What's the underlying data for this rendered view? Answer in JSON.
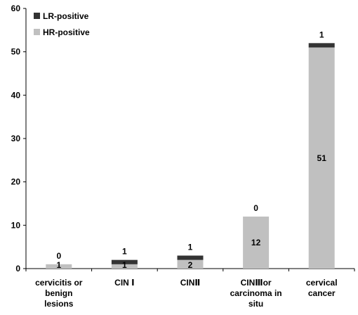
{
  "chart_data": {
    "type": "bar",
    "stacked": true,
    "categories": [
      [
        "cervicitis or",
        "benign",
        "lesions"
      ],
      [
        "CIN Ⅰ"
      ],
      [
        "CINⅡ"
      ],
      [
        "CINⅢor",
        "carcinoma in",
        "situ"
      ],
      [
        "cervical",
        "cancer"
      ]
    ],
    "series": [
      {
        "name": "HR-positive",
        "values": [
          1,
          1,
          2,
          12,
          51
        ],
        "labels": [
          "1",
          "1",
          "2",
          "12",
          "51"
        ],
        "color": "#c0c0c0"
      },
      {
        "name": "LR-positive",
        "values": [
          0,
          1,
          1,
          0,
          1
        ],
        "labels": [
          "0",
          "1",
          "1",
          "0",
          "1"
        ],
        "color": "#333333"
      }
    ],
    "ylim": [
      0,
      60
    ],
    "yticks": [
      0,
      10,
      20,
      30,
      40,
      50,
      60
    ],
    "grid": false,
    "legend_position": "top-left"
  }
}
